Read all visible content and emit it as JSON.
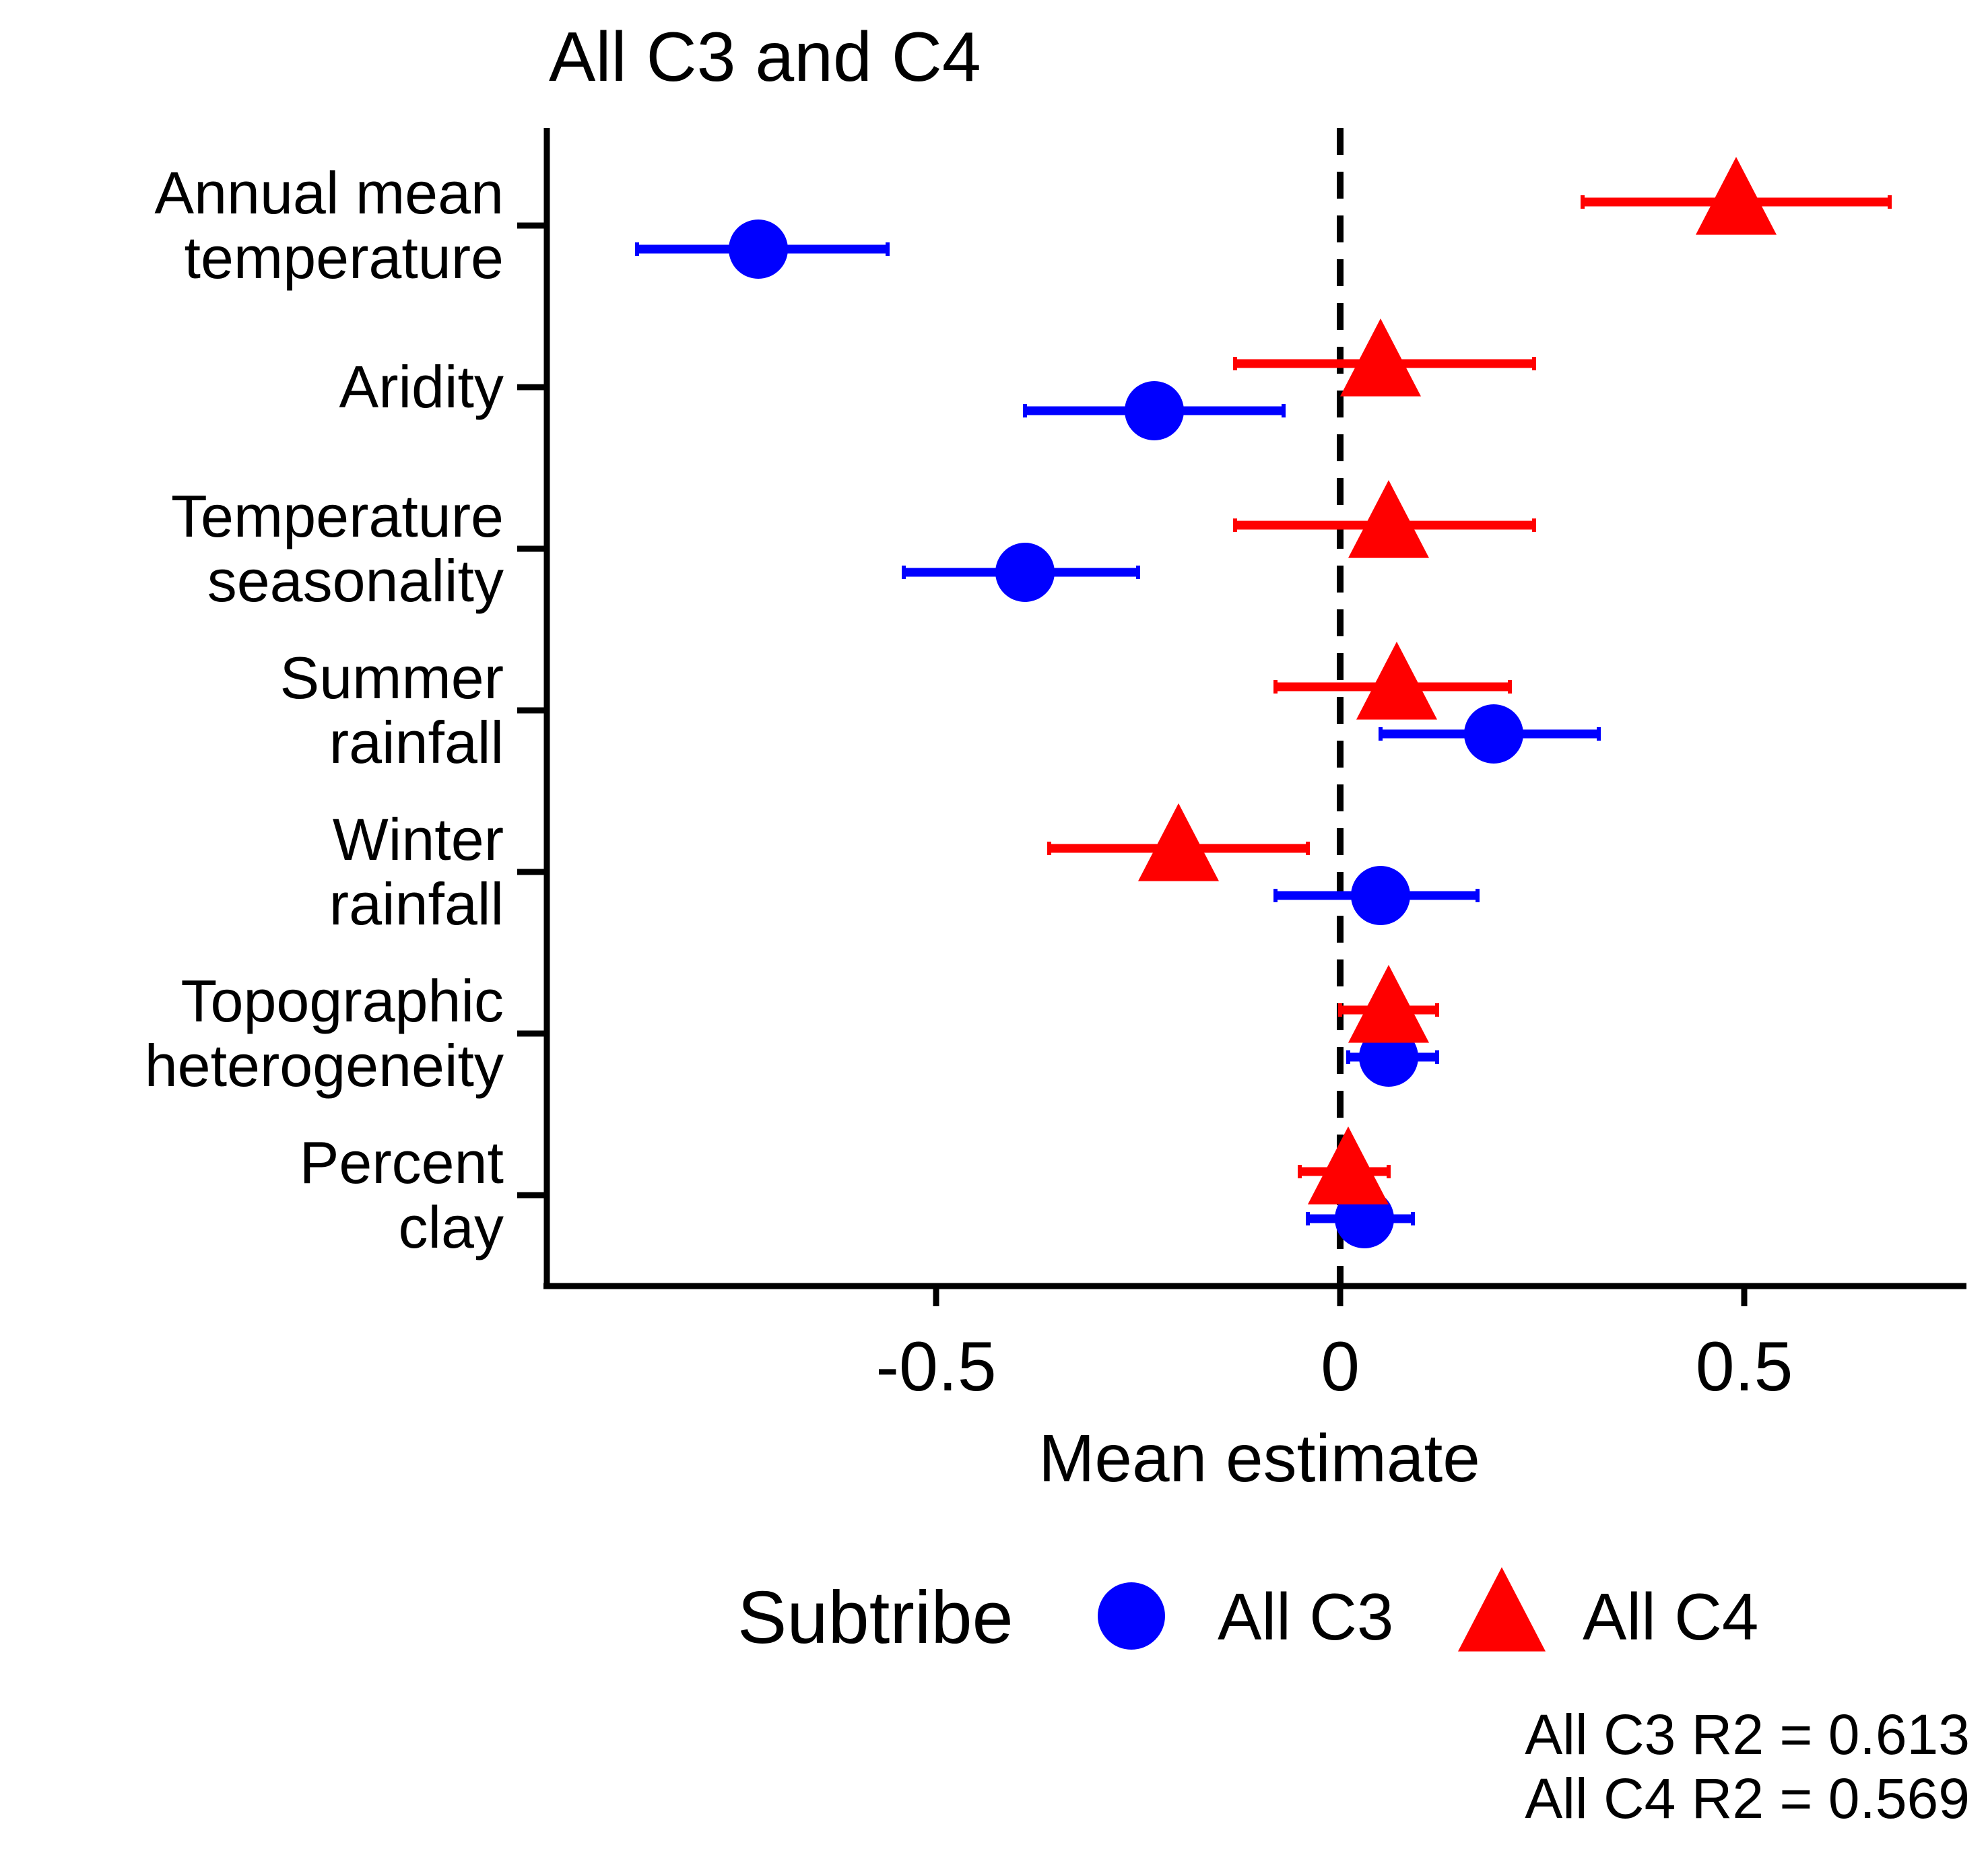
{
  "chart_data": {
    "type": "scatter",
    "title": "All C3 and C4",
    "xlabel": "Mean estimate",
    "ylabel": "",
    "xlim": [
      -0.98,
      0.78
    ],
    "xticks": [
      {
        "value": -0.5,
        "label": "-0.5"
      },
      {
        "value": 0,
        "label": "0"
      },
      {
        "value": 0.5,
        "label": "0.5"
      }
    ],
    "reference_line": {
      "x": 0,
      "style": "dashed"
    },
    "categories": [
      "Annual mean\ntemperature",
      "Aridity",
      "Temperature\nseasonality",
      "Summer\nrainfall",
      "Winter\nrainfall",
      "Topographic\nheterogeneity",
      "Percent\nclay"
    ],
    "legend": {
      "title": "Subtribe",
      "position": "bottom"
    },
    "series": [
      {
        "name": "All C3",
        "marker": "circle",
        "color": "#0000FF",
        "points": [
          {
            "category": 0,
            "mean": -0.72,
            "lower": -0.87,
            "upper": -0.56
          },
          {
            "category": 1,
            "mean": -0.23,
            "lower": -0.39,
            "upper": -0.07
          },
          {
            "category": 2,
            "mean": -0.39,
            "lower": -0.54,
            "upper": -0.25
          },
          {
            "category": 3,
            "mean": 0.19,
            "lower": 0.05,
            "upper": 0.32
          },
          {
            "category": 4,
            "mean": 0.05,
            "lower": -0.08,
            "upper": 0.17
          },
          {
            "category": 5,
            "mean": 0.06,
            "lower": 0.01,
            "upper": 0.12
          },
          {
            "category": 6,
            "mean": 0.03,
            "lower": -0.04,
            "upper": 0.09
          }
        ]
      },
      {
        "name": "All C4",
        "marker": "triangle",
        "color": "#FF0000",
        "points": [
          {
            "category": 0,
            "mean": 0.49,
            "lower": 0.3,
            "upper": 0.68
          },
          {
            "category": 1,
            "mean": 0.05,
            "lower": -0.13,
            "upper": 0.24
          },
          {
            "category": 2,
            "mean": 0.06,
            "lower": -0.13,
            "upper": 0.24
          },
          {
            "category": 3,
            "mean": 0.07,
            "lower": -0.08,
            "upper": 0.21
          },
          {
            "category": 4,
            "mean": -0.2,
            "lower": -0.36,
            "upper": -0.04
          },
          {
            "category": 5,
            "mean": 0.06,
            "lower": 0.0,
            "upper": 0.12
          },
          {
            "category": 6,
            "mean": 0.01,
            "lower": -0.05,
            "upper": 0.06
          }
        ]
      }
    ],
    "annotations": [
      "All C3 R2 = 0.613",
      "All C4 R2 = 0.569"
    ]
  }
}
